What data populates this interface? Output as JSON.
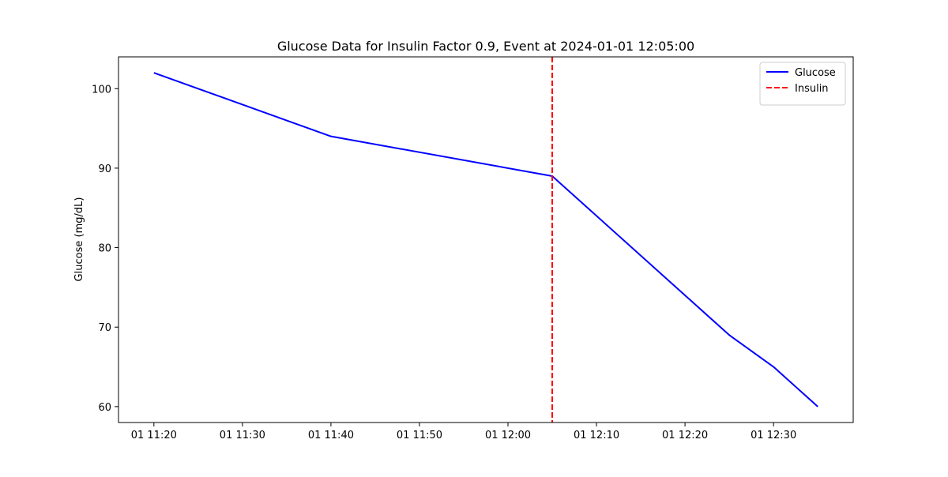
{
  "chart_data": {
    "type": "line",
    "title": "Glucose Data for Insulin Factor 0.9, Event at 2024-01-01 12:05:00",
    "xlabel": "",
    "ylabel": "Glucose (mg/dL)",
    "x_range": [
      "2024-01-01 11:16",
      "2024-01-01 12:39"
    ],
    "ylim": [
      58,
      104
    ],
    "x_ticks": [
      {
        "value": "2024-01-01 11:20",
        "label": "01 11:20"
      },
      {
        "value": "2024-01-01 11:30",
        "label": "01 11:30"
      },
      {
        "value": "2024-01-01 11:40",
        "label": "01 11:40"
      },
      {
        "value": "2024-01-01 11:50",
        "label": "01 11:50"
      },
      {
        "value": "2024-01-01 12:00",
        "label": "01 12:00"
      },
      {
        "value": "2024-01-01 12:10",
        "label": "01 12:10"
      },
      {
        "value": "2024-01-01 12:20",
        "label": "01 12:20"
      },
      {
        "value": "2024-01-01 12:30",
        "label": "01 12:30"
      }
    ],
    "y_ticks": [
      60,
      70,
      80,
      90,
      100
    ],
    "grid": false,
    "legend_position": "top-right",
    "series": [
      {
        "name": "Glucose",
        "color": "#0000ff",
        "style": "solid",
        "x": [
          "2024-01-01 11:20",
          "2024-01-01 11:40",
          "2024-01-01 12:05",
          "2024-01-01 12:25",
          "2024-01-01 12:30",
          "2024-01-01 12:35"
        ],
        "y": [
          102,
          94,
          89,
          69,
          65,
          60
        ]
      }
    ],
    "vertical_lines": [
      {
        "name": "Insulin",
        "color": "#ff0000",
        "style": "dashed",
        "x": "2024-01-01 12:05"
      }
    ]
  }
}
